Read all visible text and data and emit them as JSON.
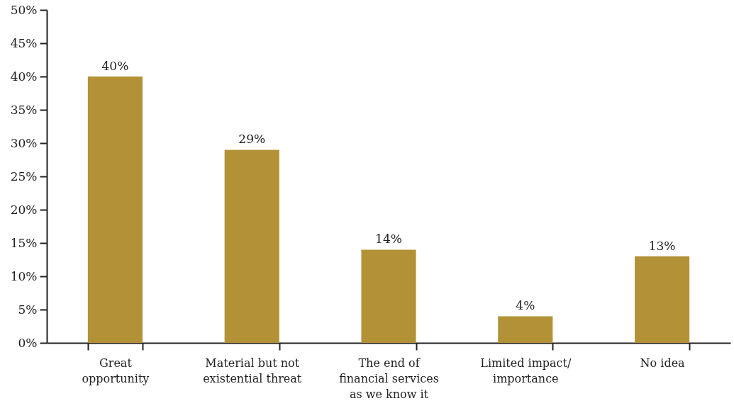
{
  "chart_data": {
    "type": "bar",
    "categories": [
      "Great\nopportunity",
      "Material but not\nexistential threat",
      "The end of\nfinancial services\nas we know it",
      "Limited impact/\nimportance",
      "No idea"
    ],
    "values": [
      40,
      29,
      14,
      4,
      13
    ],
    "color": "#b39237",
    "ylim": [
      0,
      50
    ],
    "yticks": [
      {
        "value": 0,
        "label": "0%"
      },
      {
        "value": 5,
        "label": "5%"
      },
      {
        "value": 10,
        "label": "10%"
      },
      {
        "value": 15,
        "label": "15%"
      },
      {
        "value": 20,
        "label": "20%"
      },
      {
        "value": 25,
        "label": "25%"
      },
      {
        "value": 30,
        "label": "30%"
      },
      {
        "value": 35,
        "label": "35%"
      },
      {
        "value": 40,
        "label": "40%"
      },
      {
        "value": 45,
        "label": "45%"
      },
      {
        "value": 50,
        "label": "50%"
      }
    ],
    "value_labels": [
      "40%",
      "29%",
      "14%",
      "4%",
      "13%"
    ],
    "grid": false
  }
}
